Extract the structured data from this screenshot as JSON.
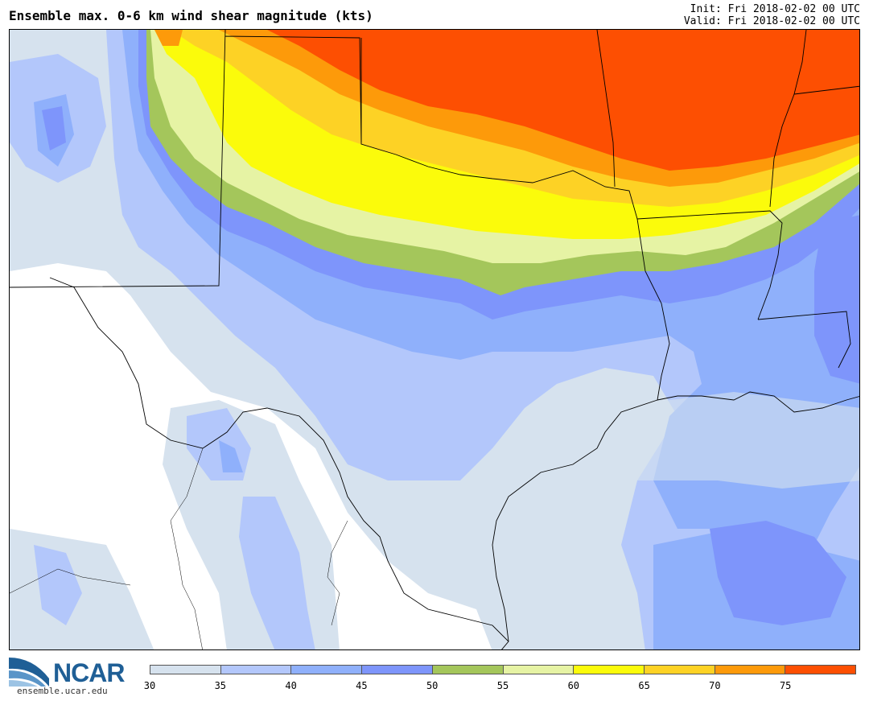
{
  "header": {
    "title": "Ensemble max. 0-6 km wind shear magnitude (kts)",
    "init": "Init: Fri 2018-02-02 00 UTC",
    "valid": "Valid: Fri 2018-02-02 00 UTC"
  },
  "logo": {
    "text": "NCAR",
    "url": "ensemble.ucar.edu",
    "color": "#1f5f96"
  },
  "legend": {
    "unit": "kts",
    "ticks": [
      "30",
      "35",
      "40",
      "45",
      "50",
      "55",
      "60",
      "65",
      "70",
      "75"
    ],
    "colors": [
      "#d6e2ee",
      "#b3c7fb",
      "#8fb0fb",
      "#7e95fb",
      "#a4c65b",
      "#e6f3a4",
      "#fbfb0b",
      "#fdd225",
      "#fd9a0a",
      "#fd4f02"
    ]
  }
}
